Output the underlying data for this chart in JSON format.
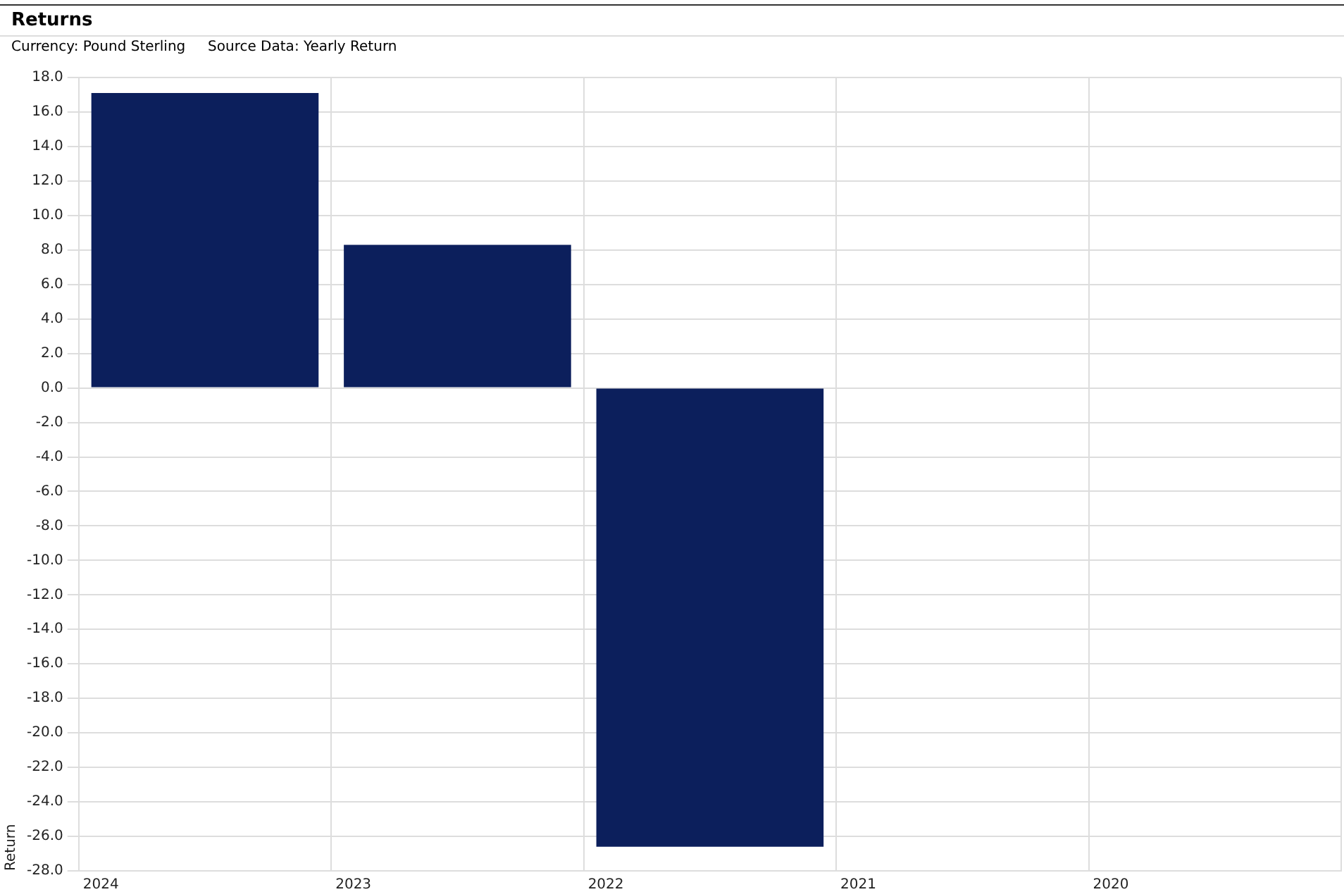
{
  "chart_data": {
    "type": "bar",
    "title": "Returns",
    "subtitle": "Currency: Pound Sterling     Source Data: Yearly Return",
    "ylabel": "Return",
    "categories": [
      "2024",
      "2023",
      "2022",
      "2021",
      "2020"
    ],
    "values": [
      17.1,
      8.3,
      -26.6,
      null,
      null
    ],
    "color": "#0c1f5c",
    "ylim": [
      -28,
      18
    ],
    "yticks": [
      {
        "value": 18,
        "label": "18.0"
      },
      {
        "value": 16,
        "label": "16.0"
      },
      {
        "value": 14,
        "label": "14.0"
      },
      {
        "value": 12,
        "label": "12.0"
      },
      {
        "value": 10,
        "label": "10.0"
      },
      {
        "value": 8,
        "label": "8.0"
      },
      {
        "value": 6,
        "label": "6.0"
      },
      {
        "value": 4,
        "label": "4.0"
      },
      {
        "value": 2,
        "label": "2.0"
      },
      {
        "value": 0,
        "label": "0.0"
      },
      {
        "value": -2,
        "label": "-2.0"
      },
      {
        "value": -4,
        "label": "-4.0"
      },
      {
        "value": -6,
        "label": "-6.0"
      },
      {
        "value": -8,
        "label": "-8.0"
      },
      {
        "value": -10,
        "label": "-10.0"
      },
      {
        "value": -12,
        "label": "-12.0"
      },
      {
        "value": -14,
        "label": "-14.0"
      },
      {
        "value": -16,
        "label": "-16.0"
      },
      {
        "value": -18,
        "label": "-18.0"
      },
      {
        "value": -20,
        "label": "-20.0"
      },
      {
        "value": -22,
        "label": "-22.0"
      },
      {
        "value": -24,
        "label": "-24.0"
      },
      {
        "value": -26,
        "label": "-26.0"
      },
      {
        "value": -28,
        "label": "-28.0"
      }
    ],
    "grid": true,
    "legend": false
  }
}
